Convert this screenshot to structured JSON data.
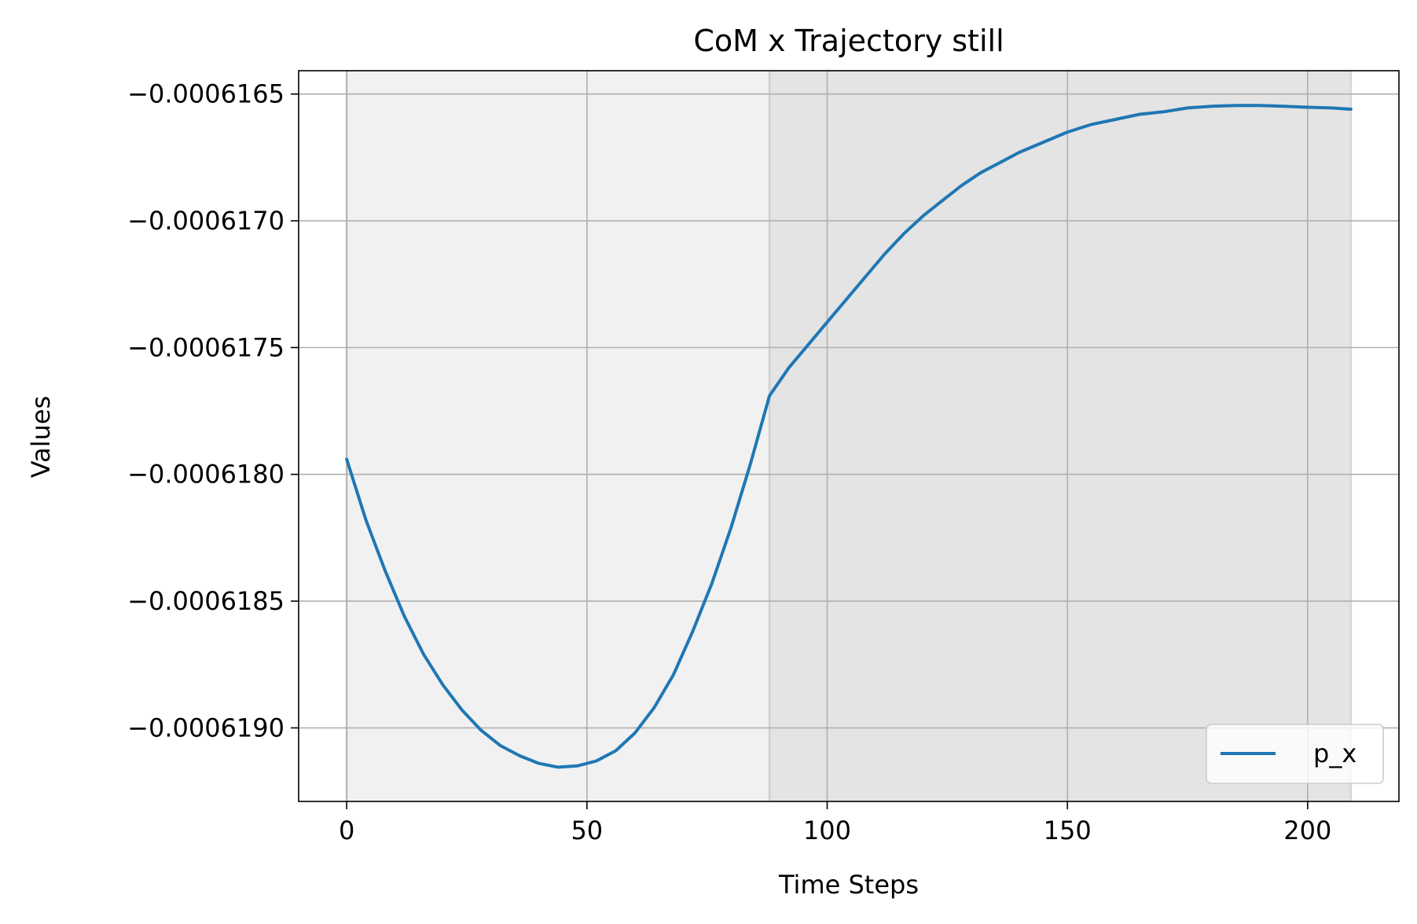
{
  "chart_data": {
    "type": "line",
    "title": "CoM x Trajectory still",
    "xlabel": "Time Steps",
    "ylabel": "Values",
    "xlim": [
      -10,
      219
    ],
    "ylim": [
      -0.00061929,
      -0.000616408
    ],
    "x_ticks": [
      0,
      50,
      100,
      150,
      200
    ],
    "x_tick_labels": [
      "0",
      "50",
      "100",
      "150",
      "200"
    ],
    "y_ticks": [
      -0.000619,
      -0.0006185,
      -0.000618,
      -0.0006175,
      -0.000617,
      -0.0006165
    ],
    "y_tick_labels": [
      "−0.0006190",
      "−0.0006185",
      "−0.0006180",
      "−0.0006175",
      "−0.0006170",
      "−0.0006165"
    ],
    "grid": true,
    "legend_position": "lower-right",
    "shaded_regions": [
      {
        "x_start": 0,
        "x_end": 88,
        "color": "#f1f1f1"
      },
      {
        "x_start": 88,
        "x_end": 209,
        "color": "#e4e4e4"
      }
    ],
    "series": [
      {
        "name": "p_x",
        "color": "#1f77b4",
        "x": [
          0,
          4,
          8,
          12,
          16,
          20,
          24,
          28,
          32,
          36,
          40,
          44,
          48,
          52,
          56,
          60,
          64,
          68,
          72,
          76,
          80,
          84,
          88,
          92,
          96,
          100,
          104,
          108,
          112,
          116,
          120,
          124,
          128,
          132,
          136,
          140,
          145,
          150,
          155,
          160,
          165,
          170,
          175,
          180,
          185,
          190,
          195,
          200,
          205,
          209
        ],
        "y": [
          -0.00061794,
          -0.00061818,
          -0.00061838,
          -0.00061856,
          -0.00061871,
          -0.00061883,
          -0.00061893,
          -0.00061901,
          -0.00061907,
          -0.00061911,
          -0.00061914,
          -0.000619155,
          -0.00061915,
          -0.00061913,
          -0.00061909,
          -0.00061902,
          -0.00061892,
          -0.00061879,
          -0.00061862,
          -0.00061843,
          -0.00061821,
          -0.00061796,
          -0.00061769,
          -0.00061758,
          -0.00061749,
          -0.0006174,
          -0.00061731,
          -0.00061722,
          -0.00061713,
          -0.00061705,
          -0.00061698,
          -0.00061692,
          -0.00061686,
          -0.00061681,
          -0.00061677,
          -0.00061673,
          -0.00061669,
          -0.00061665,
          -0.00061662,
          -0.0006166,
          -0.00061658,
          -0.00061657,
          -0.000616555,
          -0.000616548,
          -0.000616545,
          -0.000616545,
          -0.000616548,
          -0.000616552,
          -0.000616555,
          -0.00061656
        ]
      }
    ]
  }
}
